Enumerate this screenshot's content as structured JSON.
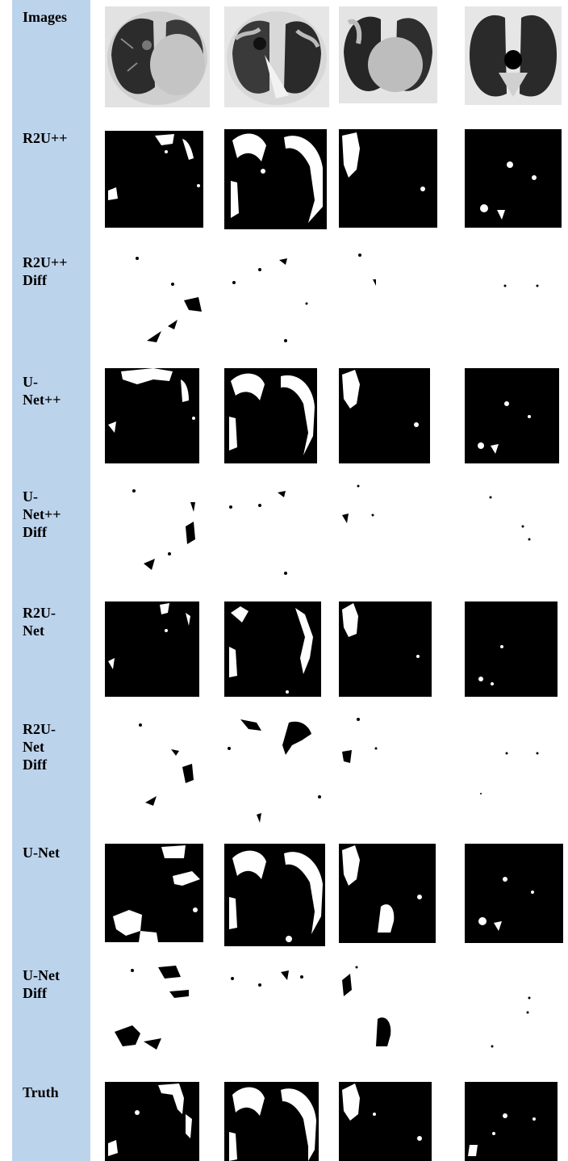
{
  "figure": {
    "rows": [
      {
        "id": "images",
        "label": "Images",
        "kind": "ct"
      },
      {
        "id": "r2upp",
        "label": "R2U++",
        "kind": "mask"
      },
      {
        "id": "r2upp-diff",
        "label": "R2U++\nDiff",
        "kind": "diff"
      },
      {
        "id": "unetpp",
        "label": "U-\nNet++",
        "kind": "mask"
      },
      {
        "id": "unetpp-diff",
        "label": "U-\nNet++\nDiff",
        "kind": "diff"
      },
      {
        "id": "r2unet",
        "label": "R2U-\nNet",
        "kind": "mask"
      },
      {
        "id": "r2unet-diff",
        "label": "R2U-\nNet\nDiff",
        "kind": "diff"
      },
      {
        "id": "unet",
        "label": "U-Net",
        "kind": "mask"
      },
      {
        "id": "unet-diff",
        "label": "U-Net\nDiff",
        "kind": "diff"
      },
      {
        "id": "truth",
        "label": "Truth",
        "kind": "mask"
      }
    ],
    "columns": 4,
    "colors": {
      "label_band": "#bcd3ec",
      "mask_bg": "#000000",
      "mask_fg": "#ffffff",
      "diff_bg": "#ffffff",
      "diff_fg": "#000000"
    }
  }
}
